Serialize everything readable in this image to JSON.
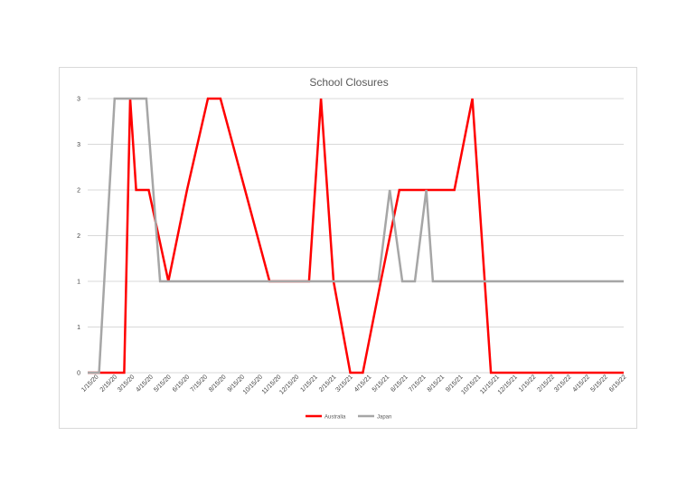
{
  "chart_data": {
    "type": "line",
    "title": "School Closures",
    "xlabel": "",
    "ylabel": "",
    "x": [
      "1/15/20",
      "2/15/20",
      "3/15/20",
      "4/15/20",
      "5/15/20",
      "6/15/20",
      "7/15/20",
      "8/15/20",
      "9/15/20",
      "10/15/20",
      "11/15/20",
      "12/15/20",
      "1/15/21",
      "2/15/21",
      "3/15/21",
      "4/15/21",
      "5/15/21",
      "6/15/21",
      "7/15/21",
      "8/15/21",
      "9/15/21",
      "10/15/21",
      "11/15/21",
      "12/15/21",
      "1/15/22",
      "2/15/22",
      "3/15/22",
      "4/15/22",
      "5/15/22",
      "6/15/22"
    ],
    "series_points": [
      {
        "name": "Australia",
        "color": "#ff0000",
        "points": [
          [
            "1/1/20",
            0
          ],
          [
            "2/10/20",
            0
          ],
          [
            "3/2/20",
            0
          ],
          [
            "3/12/20",
            3
          ],
          [
            "3/22/20",
            2
          ],
          [
            "4/12/20",
            2
          ],
          [
            "5/15/20",
            1
          ],
          [
            "6/15/20",
            2
          ],
          [
            "7/20/20",
            3
          ],
          [
            "8/10/20",
            3
          ],
          [
            "9/20/20",
            2
          ],
          [
            "10/31/20",
            1
          ],
          [
            "11/30/20",
            1
          ],
          [
            "1/5/21",
            1
          ],
          [
            "1/25/21",
            3
          ],
          [
            "2/15/21",
            1
          ],
          [
            "3/15/21",
            0
          ],
          [
            "4/5/21",
            0
          ],
          [
            "5/5/21",
            1
          ],
          [
            "6/5/21",
            2
          ],
          [
            "7/5/21",
            2
          ],
          [
            "7/25/21",
            2
          ],
          [
            "8/15/21",
            2
          ],
          [
            "9/5/21",
            2
          ],
          [
            "10/5/21",
            3
          ],
          [
            "11/5/21",
            0
          ],
          [
            "12/15/21",
            0
          ],
          [
            "6/15/22",
            0
          ]
        ]
      },
      {
        "name": "Japan",
        "color": "#a6a6a6",
        "points": [
          [
            "1/1/20",
            0
          ],
          [
            "1/20/20",
            0
          ],
          [
            "2/15/20",
            3
          ],
          [
            "3/15/20",
            3
          ],
          [
            "4/8/20",
            3
          ],
          [
            "5/1/20",
            1
          ],
          [
            "6/15/20",
            1
          ],
          [
            "9/15/20",
            1
          ],
          [
            "12/15/20",
            1
          ],
          [
            "3/15/21",
            1
          ],
          [
            "4/5/21",
            1
          ],
          [
            "5/1/21",
            1
          ],
          [
            "5/20/21",
            2
          ],
          [
            "6/10/21",
            1
          ],
          [
            "7/1/21",
            1
          ],
          [
            "7/20/21",
            2
          ],
          [
            "7/31/21",
            1
          ],
          [
            "9/15/21",
            1
          ],
          [
            "12/15/21",
            1
          ],
          [
            "3/15/22",
            1
          ],
          [
            "6/15/22",
            1
          ]
        ]
      }
    ],
    "yticks": [
      {
        "value": 0,
        "label": "0"
      },
      {
        "value": 0.5,
        "label": "1"
      },
      {
        "value": 1,
        "label": "1"
      },
      {
        "value": 1.5,
        "label": "2"
      },
      {
        "value": 2,
        "label": "2"
      },
      {
        "value": 2.5,
        "label": "3"
      },
      {
        "value": 3,
        "label": "3"
      }
    ],
    "ylim": [
      0,
      3
    ],
    "xlim": [
      "1/1/20",
      "6/15/22"
    ],
    "grid": true,
    "legend": {
      "position": "bottom",
      "items": [
        "Australia",
        "Japan"
      ]
    }
  }
}
